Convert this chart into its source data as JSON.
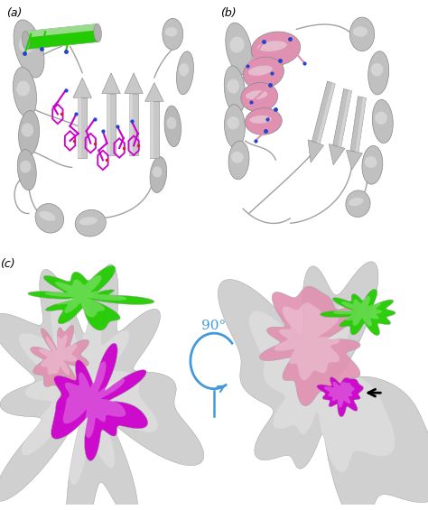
{
  "figure_width": 4.74,
  "figure_height": 5.65,
  "dpi": 100,
  "bg_color": "#ffffff",
  "gray_light": "#d8d8d8",
  "gray_mid": "#b8b8b8",
  "gray_dark": "#888888",
  "gray_helix": "#c0c0c0",
  "gray_helix_highlight": "#e8e8e8",
  "green": "#22cc00",
  "magenta": "#cc00cc",
  "pink": "#e090b0",
  "blue_atom": "#2244cc",
  "red_atom": "#cc2222",
  "pink_atom": "#cc8888",
  "rotation_blue": "#4499dd",
  "panel_a_label": "(a)",
  "panel_b_label": "(b)",
  "panel_c_label": "(c)",
  "rotation_label": "90°"
}
